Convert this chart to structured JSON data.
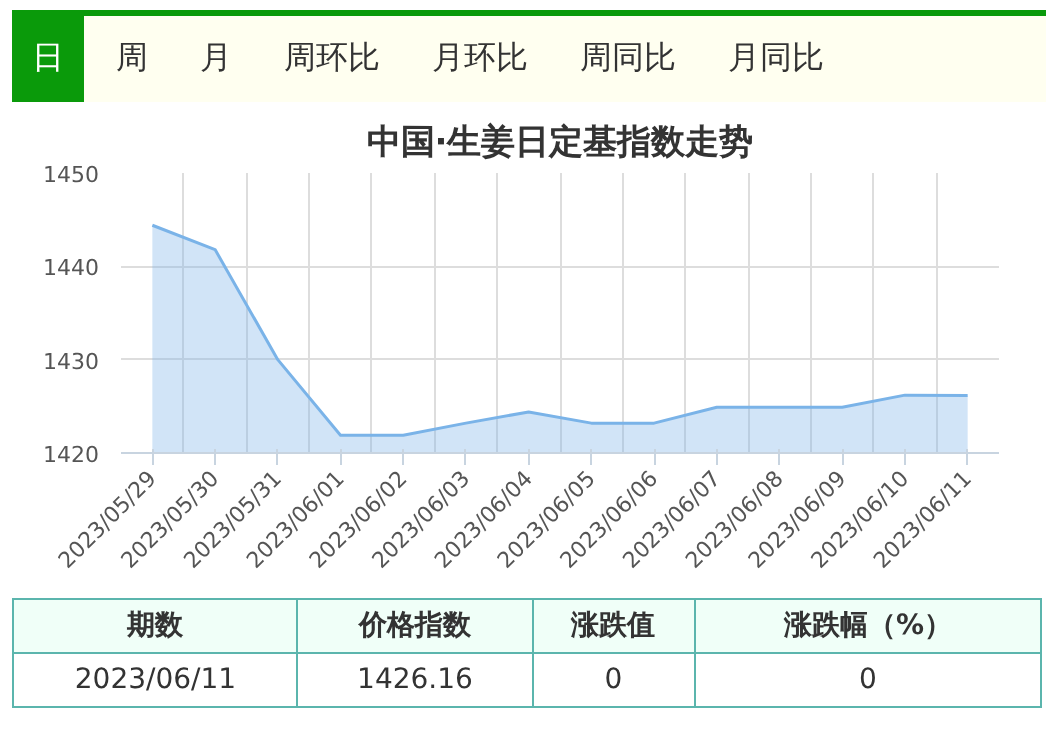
{
  "chart_data": {
    "type": "area",
    "title": "中国·生姜日定基指数走势",
    "categories": [
      "2023/05/29",
      "2023/05/30",
      "2023/05/31",
      "2023/06/01",
      "2023/06/02",
      "2023/06/03",
      "2023/06/04",
      "2023/06/05",
      "2023/06/06",
      "2023/06/07",
      "2023/06/08",
      "2023/06/09",
      "2023/06/10",
      "2023/06/11"
    ],
    "series": [
      {
        "color": "#7ab3e8",
        "values": [
          1444.4,
          1441.8,
          1430,
          1421.9,
          1421.9,
          1423.2,
          1424.4,
          1423.2,
          1423.2,
          1424.9,
          1424.9,
          1424.9,
          1426.2,
          1426.16
        ]
      }
    ],
    "ylim": [
      1420,
      1450
    ],
    "yticks": [
      1420,
      1430,
      1440,
      1450
    ],
    "grid": true,
    "marker": "none",
    "line_style": "solid",
    "annotations": [
      "日",
      "周",
      "月",
      "周环比",
      "月环比",
      "周同比",
      "月同比",
      "期数",
      "价格指数",
      "涨跌值",
      "涨跌幅（%）",
      "2023/06/11",
      "1426.16",
      "0",
      "0"
    ]
  }
}
